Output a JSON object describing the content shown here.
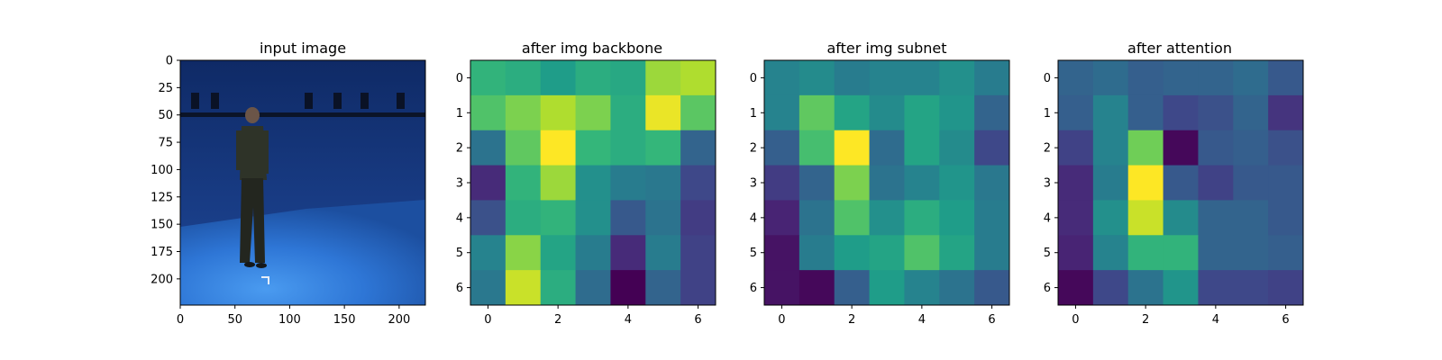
{
  "chart_data": [
    {
      "type": "image",
      "title": "input image",
      "xlim": [
        0,
        224
      ],
      "ylim": [
        224,
        0
      ],
      "xticks": [
        0,
        50,
        100,
        150,
        200
      ],
      "yticks": [
        0,
        25,
        50,
        75,
        100,
        125,
        150,
        175,
        200
      ],
      "content": "person standing in blue studio with lighting rig"
    },
    {
      "type": "heatmap",
      "title": "after img backbone",
      "colormap": "viridis",
      "xticks": [
        0,
        2,
        4,
        6
      ],
      "yticks": [
        0,
        1,
        2,
        3,
        4,
        5,
        6
      ],
      "values": [
        [
          0.65,
          0.62,
          0.55,
          0.62,
          0.6,
          0.85,
          0.88
        ],
        [
          0.72,
          0.8,
          0.88,
          0.8,
          0.62,
          0.97,
          0.74
        ],
        [
          0.38,
          0.75,
          1.0,
          0.66,
          0.62,
          0.66,
          0.32
        ],
        [
          0.12,
          0.65,
          0.85,
          0.5,
          0.42,
          0.4,
          0.22
        ],
        [
          0.25,
          0.62,
          0.65,
          0.5,
          0.28,
          0.38,
          0.18
        ],
        [
          0.45,
          0.82,
          0.58,
          0.42,
          0.12,
          0.42,
          0.2
        ],
        [
          0.4,
          0.92,
          0.62,
          0.35,
          0.0,
          0.32,
          0.2
        ]
      ]
    },
    {
      "type": "heatmap",
      "title": "after img subnet",
      "colormap": "viridis",
      "xticks": [
        0,
        2,
        4,
        6
      ],
      "yticks": [
        0,
        1,
        2,
        3,
        4,
        5,
        6
      ],
      "values": [
        [
          0.45,
          0.48,
          0.42,
          0.45,
          0.45,
          0.5,
          0.42
        ],
        [
          0.45,
          0.75,
          0.58,
          0.48,
          0.58,
          0.52,
          0.32
        ],
        [
          0.3,
          0.7,
          1.0,
          0.35,
          0.58,
          0.48,
          0.22
        ],
        [
          0.18,
          0.32,
          0.8,
          0.38,
          0.45,
          0.52,
          0.4
        ],
        [
          0.1,
          0.38,
          0.72,
          0.5,
          0.62,
          0.55,
          0.42
        ],
        [
          0.05,
          0.42,
          0.55,
          0.58,
          0.72,
          0.58,
          0.42
        ],
        [
          0.05,
          0.02,
          0.3,
          0.55,
          0.45,
          0.38,
          0.28
        ]
      ]
    },
    {
      "type": "heatmap",
      "title": "after attention",
      "colormap": "viridis",
      "xticks": [
        0,
        2,
        4,
        6
      ],
      "yticks": [
        0,
        1,
        2,
        3,
        4,
        5,
        6
      ],
      "values": [
        [
          0.32,
          0.35,
          0.3,
          0.32,
          0.32,
          0.35,
          0.28
        ],
        [
          0.3,
          0.45,
          0.3,
          0.22,
          0.25,
          0.32,
          0.15
        ],
        [
          0.2,
          0.45,
          0.78,
          0.02,
          0.28,
          0.3,
          0.25
        ],
        [
          0.12,
          0.42,
          1.0,
          0.28,
          0.2,
          0.28,
          0.28
        ],
        [
          0.12,
          0.5,
          0.92,
          0.48,
          0.32,
          0.32,
          0.28
        ],
        [
          0.1,
          0.45,
          0.65,
          0.65,
          0.32,
          0.32,
          0.3
        ],
        [
          0.02,
          0.22,
          0.38,
          0.52,
          0.22,
          0.22,
          0.2
        ]
      ]
    }
  ]
}
